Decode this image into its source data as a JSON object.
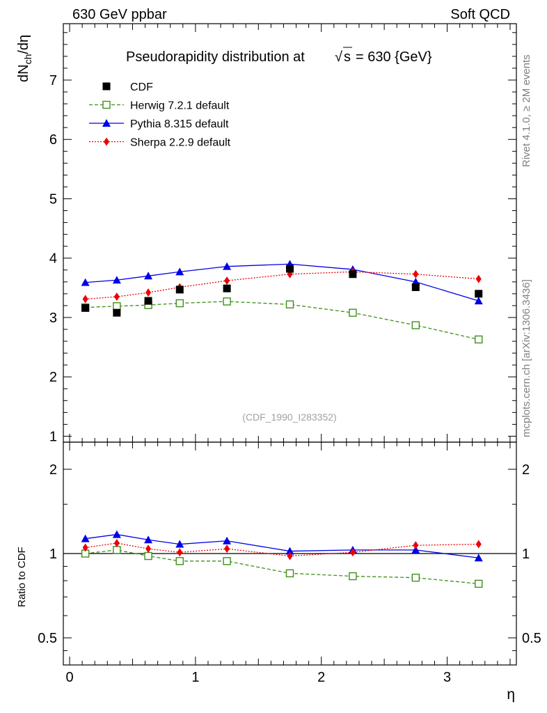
{
  "chart_data": [
    {
      "type": "line",
      "panel": "main",
      "header_left": "630 GeV ppbar",
      "header_right": "Soft QCD",
      "title": "Pseudorapidity distribution at",
      "title_sqrt": "s",
      "title_suffix": "= 630 {GeV}",
      "ylabel_main": "dN",
      "ylabel_sub": "ch",
      "ylabel_tail": "/dη",
      "watermark": "(CDF_1990_I283352)",
      "ylim": [
        0.9,
        7.95
      ],
      "xlim": [
        -0.05,
        3.55
      ],
      "yticks": [
        1,
        2,
        3,
        4,
        5,
        6,
        7
      ],
      "ytick_labels": [
        "1",
        "2",
        "3",
        "4",
        "5",
        "6",
        "7"
      ],
      "legend_position": "top-left",
      "series": [
        {
          "name": "CDF",
          "style": "data",
          "color": "#000000",
          "x": [
            0.125,
            0.375,
            0.625,
            0.875,
            1.25,
            1.75,
            2.25,
            2.75,
            3.25
          ],
          "values": [
            3.16,
            3.08,
            3.28,
            3.47,
            3.49,
            3.82,
            3.73,
            3.51,
            3.4
          ]
        },
        {
          "name": "Herwig 7.2.1 default",
          "style": "dashed-open-square",
          "color": "#3d8f1a",
          "x": [
            0.125,
            0.375,
            0.625,
            0.875,
            1.25,
            1.75,
            2.25,
            2.75,
            3.25
          ],
          "values": [
            3.17,
            3.19,
            3.21,
            3.24,
            3.27,
            3.22,
            3.08,
            2.87,
            2.63
          ]
        },
        {
          "name": "Pythia 8.315 default",
          "style": "solid-triangle",
          "color": "#0000e6",
          "x": [
            0.125,
            0.375,
            0.625,
            0.875,
            1.25,
            1.75,
            2.25,
            2.75,
            3.25
          ],
          "values": [
            3.59,
            3.63,
            3.7,
            3.77,
            3.86,
            3.9,
            3.81,
            3.6,
            3.28
          ]
        },
        {
          "name": "Sherpa 2.2.9 default",
          "style": "dotted-diamond",
          "color": "#ee0000",
          "x": [
            0.125,
            0.375,
            0.625,
            0.875,
            1.25,
            1.75,
            2.25,
            2.75,
            3.25
          ],
          "values": [
            3.31,
            3.35,
            3.42,
            3.51,
            3.62,
            3.73,
            3.77,
            3.73,
            3.65
          ]
        }
      ]
    },
    {
      "type": "line",
      "panel": "ratio",
      "ylabel": "Ratio to CDF",
      "xlabel": "η",
      "scale": "log",
      "ylim": [
        0.4,
        2.5
      ],
      "xlim": [
        -0.05,
        3.55
      ],
      "yticks": [
        0.5,
        1,
        2
      ],
      "ytick_labels": [
        "0.5",
        "1",
        "2"
      ],
      "xticks": [
        0,
        1,
        2,
        3
      ],
      "xtick_labels": [
        "0",
        "1",
        "2",
        "3"
      ],
      "series": [
        {
          "name": "Herwig 7.2.1 default",
          "color": "#3d8f1a",
          "x": [
            0.125,
            0.375,
            0.625,
            0.875,
            1.25,
            1.75,
            2.25,
            2.75,
            3.25
          ],
          "values": [
            1.0,
            1.03,
            0.98,
            0.94,
            0.94,
            0.85,
            0.83,
            0.82,
            0.78
          ]
        },
        {
          "name": "Pythia 8.315 default",
          "color": "#0000e6",
          "x": [
            0.125,
            0.375,
            0.625,
            0.875,
            1.25,
            1.75,
            2.25,
            2.75,
            3.25
          ],
          "values": [
            1.13,
            1.17,
            1.12,
            1.08,
            1.11,
            1.02,
            1.03,
            1.03,
            0.965
          ]
        },
        {
          "name": "Sherpa 2.2.9 default",
          "color": "#ee0000",
          "x": [
            0.125,
            0.375,
            0.625,
            0.875,
            1.25,
            1.75,
            2.25,
            2.75,
            3.25
          ],
          "values": [
            1.05,
            1.09,
            1.04,
            1.01,
            1.04,
            0.98,
            1.01,
            1.07,
            1.08
          ]
        }
      ]
    }
  ],
  "side_text": {
    "rivet": "Rivet 4.1.0, ≥ 2M events",
    "mcplots": "mcplots.cern.ch [arXiv:1306.3436]"
  }
}
